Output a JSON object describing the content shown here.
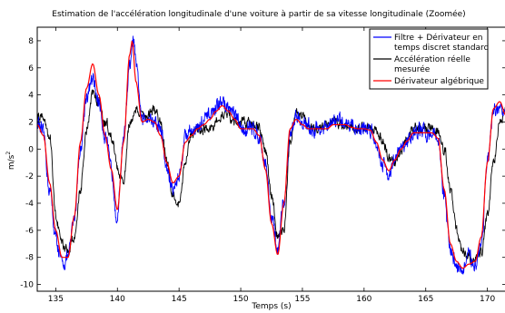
{
  "chart_data": {
    "type": "line",
    "title": "Estimation de l'accélération longitudinale d'une voiture à partir de sa vitesse longitudinale (Zoomée)",
    "xlabel": "Temps (s)",
    "ylabel": "m/s²",
    "xlim": [
      133.5,
      171.5
    ],
    "ylim": [
      -10.5,
      9
    ],
    "xticks": [
      135,
      140,
      145,
      150,
      155,
      160,
      165,
      170
    ],
    "yticks": [
      -10,
      -8,
      -6,
      -4,
      -2,
      0,
      2,
      4,
      6,
      8
    ],
    "grid": false,
    "legend_position": "top-right",
    "series": [
      {
        "name": "Filtre + Dérivateur en temps discret standard",
        "color": "#0000ff",
        "noise": 0.55,
        "x": [
          133.5,
          134.0,
          134.5,
          135.0,
          135.5,
          136.0,
          136.5,
          137.0,
          137.5,
          138.0,
          138.5,
          139.0,
          139.5,
          140.0,
          140.5,
          141.0,
          141.3,
          141.6,
          142.0,
          142.5,
          143.0,
          143.5,
          144.0,
          144.5,
          145.0,
          145.5,
          146.0,
          146.5,
          147.0,
          147.5,
          148.0,
          148.5,
          149.0,
          149.5,
          150.0,
          150.5,
          151.0,
          151.5,
          152.0,
          152.5,
          153.0,
          153.5,
          154.0,
          154.5,
          155.0,
          155.5,
          156.0,
          156.5,
          157.0,
          157.5,
          158.0,
          158.5,
          159.0,
          159.5,
          160.0,
          160.5,
          161.0,
          161.5,
          162.0,
          162.5,
          163.0,
          163.5,
          164.0,
          164.5,
          165.0,
          165.5,
          166.0,
          166.5,
          167.0,
          167.5,
          168.0,
          168.5,
          169.0,
          169.5,
          170.0,
          170.5,
          171.0,
          171.5
        ],
        "y": [
          2.0,
          1.0,
          -3.0,
          -6.5,
          -8.5,
          -8.0,
          -5.0,
          0.0,
          4.0,
          5.0,
          3.5,
          1.0,
          -1.5,
          -5.0,
          1.0,
          6.0,
          8.0,
          5.5,
          2.0,
          2.5,
          2.0,
          1.5,
          -1.5,
          -3.0,
          -2.0,
          1.0,
          1.5,
          1.5,
          2.0,
          2.5,
          3.0,
          3.5,
          3.0,
          2.5,
          1.5,
          1.5,
          1.5,
          1.0,
          -1.0,
          -5.0,
          -7.5,
          -4.0,
          1.0,
          2.5,
          2.0,
          1.5,
          1.5,
          1.5,
          1.5,
          2.0,
          2.0,
          2.0,
          1.8,
          1.5,
          1.5,
          1.5,
          0.5,
          -1.0,
          -1.8,
          -0.8,
          0.0,
          0.5,
          1.2,
          1.3,
          1.2,
          1.2,
          0.8,
          -3.5,
          -7.5,
          -8.5,
          -9.0,
          -8.0,
          -8.5,
          -7.0,
          -1.0,
          2.5,
          3.0,
          2.5
        ]
      },
      {
        "name": "Accélération réelle mesurée",
        "color": "#000000",
        "noise": 0.35,
        "x": [
          133.5,
          134.0,
          134.5,
          135.0,
          135.5,
          136.0,
          136.5,
          137.0,
          137.5,
          138.0,
          138.5,
          139.0,
          139.5,
          140.0,
          140.5,
          141.0,
          141.5,
          142.0,
          142.5,
          143.0,
          143.5,
          144.0,
          144.5,
          145.0,
          145.5,
          146.0,
          146.5,
          147.0,
          147.5,
          148.0,
          148.5,
          149.0,
          149.5,
          150.0,
          150.5,
          151.0,
          151.5,
          152.0,
          152.5,
          153.0,
          153.5,
          154.0,
          154.5,
          155.0,
          155.5,
          156.0,
          156.5,
          157.0,
          157.5,
          158.0,
          158.5,
          159.0,
          159.5,
          160.0,
          160.5,
          161.0,
          161.5,
          162.0,
          162.5,
          163.0,
          163.5,
          164.0,
          164.5,
          165.0,
          165.5,
          166.0,
          166.5,
          167.0,
          167.5,
          168.0,
          168.5,
          169.0,
          169.5,
          170.0,
          170.5,
          171.0,
          171.5
        ],
        "y": [
          2.5,
          2.5,
          1.0,
          -5.0,
          -7.0,
          -7.5,
          -6.5,
          -3.0,
          1.5,
          4.0,
          3.5,
          2.0,
          1.0,
          -1.5,
          -2.5,
          2.0,
          3.0,
          2.5,
          2.5,
          3.0,
          2.0,
          -1.0,
          -3.5,
          -4.0,
          -1.0,
          1.0,
          1.5,
          1.5,
          1.5,
          2.0,
          2.5,
          2.5,
          2.0,
          2.0,
          2.0,
          1.8,
          1.5,
          0.0,
          -3.5,
          -6.5,
          -6.0,
          0.5,
          2.5,
          2.5,
          1.5,
          1.5,
          1.5,
          1.8,
          2.0,
          2.0,
          1.8,
          1.5,
          1.5,
          1.5,
          1.5,
          1.5,
          0.5,
          -0.5,
          -1.0,
          0.0,
          1.0,
          1.5,
          1.5,
          1.5,
          1.5,
          1.2,
          0.0,
          -3.0,
          -6.0,
          -7.5,
          -8.0,
          -8.0,
          -7.5,
          -5.0,
          -1.0,
          2.0,
          3.0
        ]
      },
      {
        "name": "Dérivateur algébrique",
        "color": "#ff0000",
        "noise": 0.0,
        "x": [
          133.5,
          134.0,
          134.5,
          135.0,
          135.5,
          136.0,
          136.5,
          137.0,
          137.5,
          138.0,
          138.5,
          139.0,
          139.5,
          140.0,
          140.5,
          141.0,
          141.2,
          141.5,
          142.0,
          142.5,
          143.0,
          143.5,
          144.0,
          144.5,
          145.0,
          145.5,
          146.0,
          146.5,
          147.0,
          147.5,
          148.0,
          148.5,
          149.0,
          149.5,
          150.0,
          150.5,
          151.0,
          151.5,
          152.0,
          152.5,
          153.0,
          153.5,
          154.0,
          154.5,
          155.0,
          155.5,
          156.0,
          156.5,
          157.0,
          157.5,
          158.0,
          158.5,
          159.0,
          159.5,
          160.0,
          160.5,
          161.0,
          161.5,
          162.0,
          162.5,
          163.0,
          163.5,
          164.0,
          164.5,
          165.0,
          165.5,
          166.0,
          166.5,
          167.0,
          167.5,
          168.0,
          168.5,
          169.0,
          169.5,
          170.0,
          170.5,
          171.0,
          171.5
        ],
        "y": [
          1.8,
          1.0,
          -2.5,
          -6.0,
          -8.0,
          -8.0,
          -5.0,
          0.5,
          4.5,
          6.3,
          4.0,
          1.0,
          -1.5,
          -4.5,
          0.5,
          7.0,
          8.0,
          5.0,
          2.0,
          2.2,
          2.0,
          1.0,
          -1.0,
          -2.5,
          -2.0,
          0.5,
          1.0,
          1.5,
          1.8,
          2.2,
          2.8,
          3.2,
          2.8,
          2.2,
          1.5,
          1.5,
          1.5,
          1.0,
          -1.5,
          -5.5,
          -7.8,
          -4.0,
          1.5,
          2.2,
          1.8,
          1.5,
          1.5,
          1.5,
          1.5,
          1.8,
          1.8,
          1.8,
          1.6,
          1.5,
          1.5,
          1.4,
          0.5,
          -0.8,
          -1.6,
          -0.8,
          0.0,
          0.6,
          1.2,
          1.2,
          1.2,
          1.2,
          0.8,
          -3.0,
          -7.0,
          -8.3,
          -8.8,
          -8.5,
          -8.3,
          -6.5,
          -1.0,
          3.0,
          3.5,
          2.5
        ]
      }
    ]
  }
}
